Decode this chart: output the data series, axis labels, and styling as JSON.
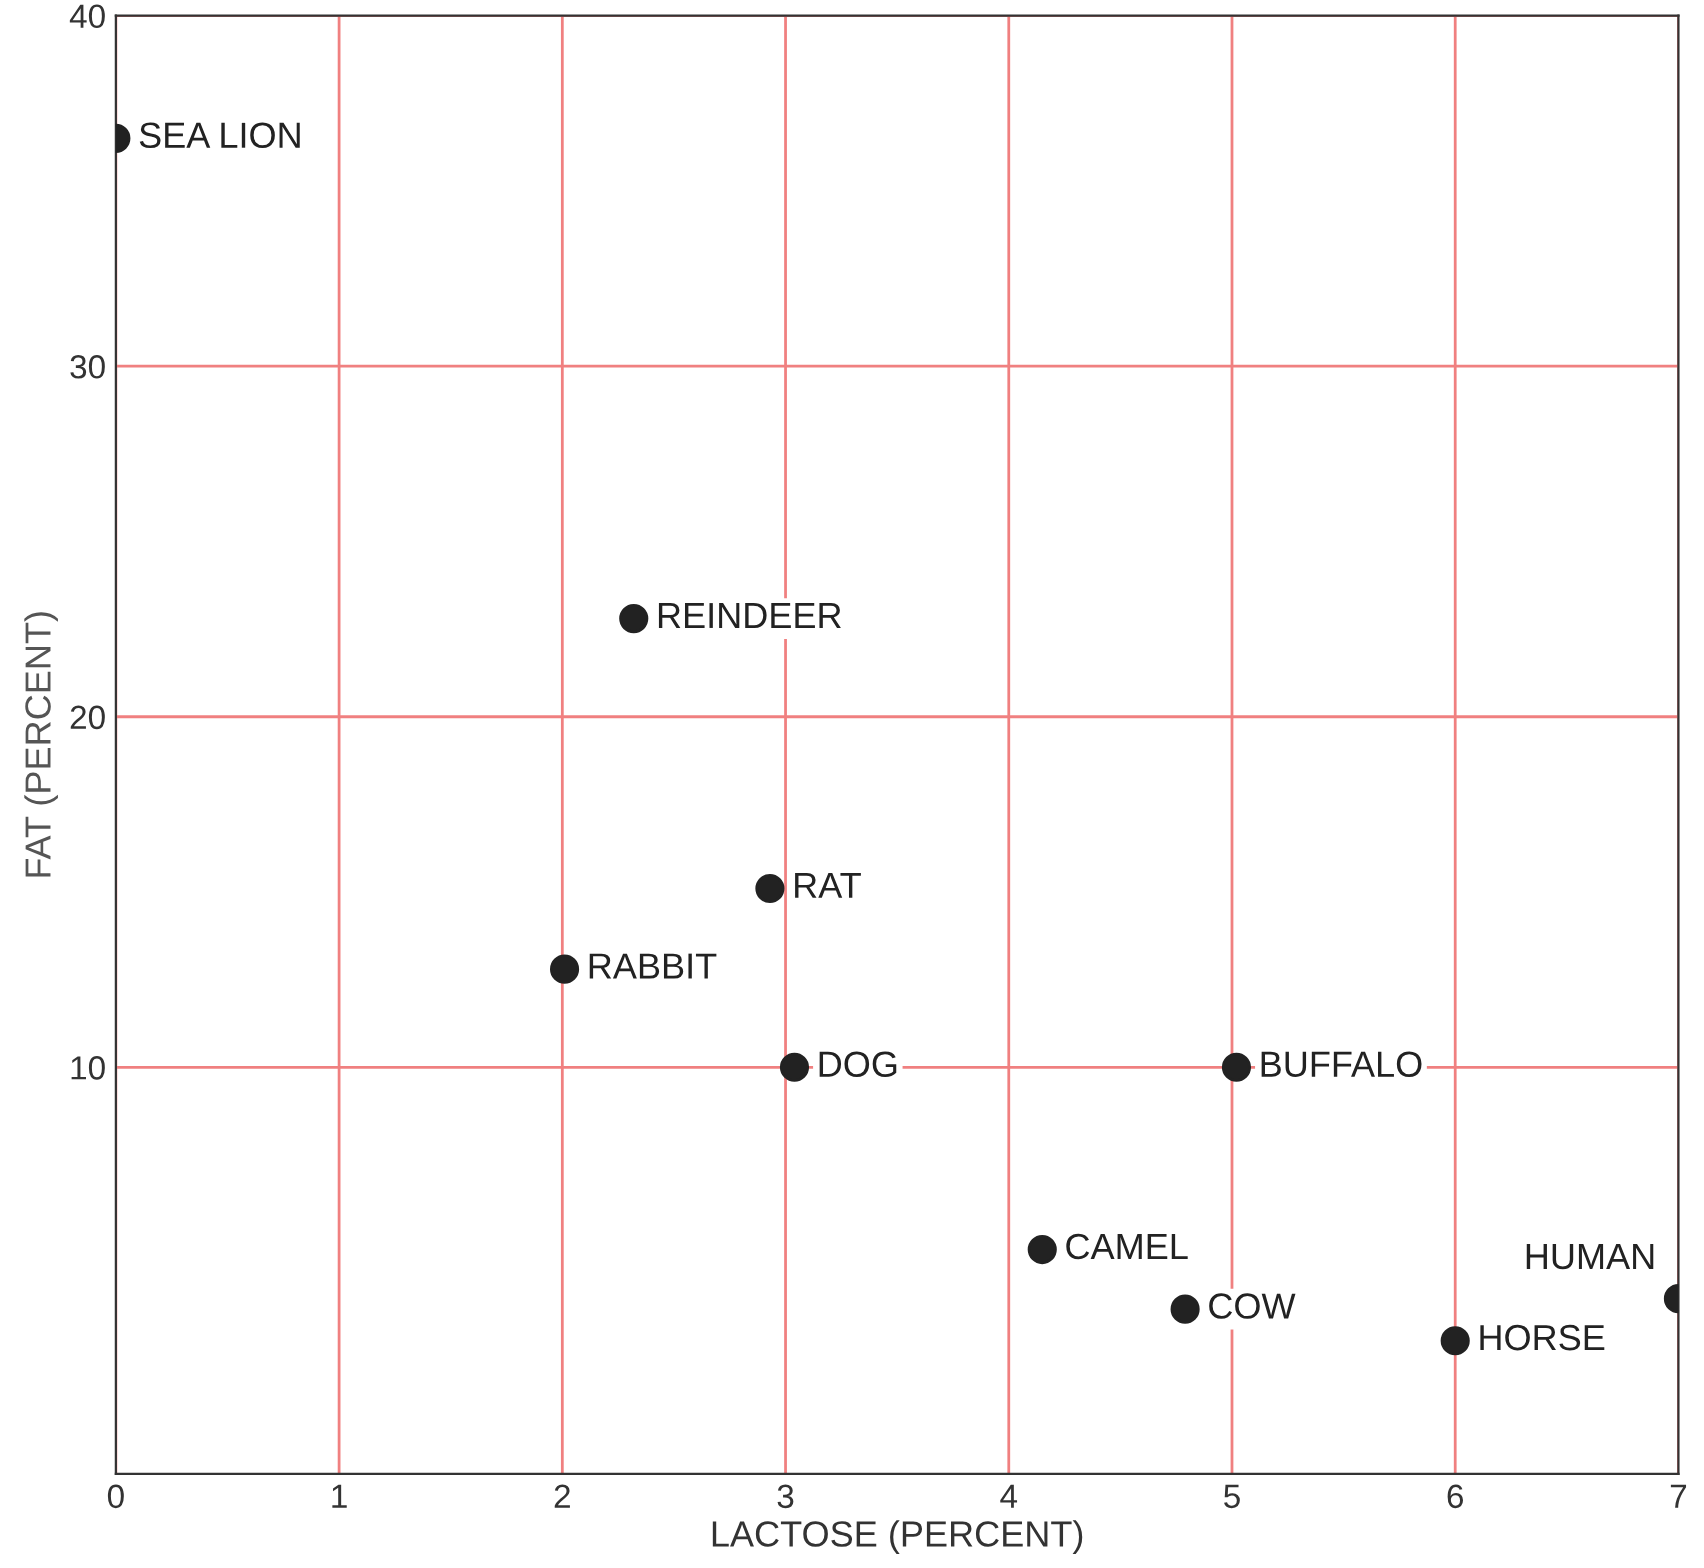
{
  "chart_data": {
    "type": "scatter",
    "xlabel": "LACTOSE (PERCENT)",
    "ylabel": "FAT (PERCENT)",
    "xlim": [
      0,
      7
    ],
    "ylim": [
      -1.6,
      40
    ],
    "xticks": [
      0,
      1,
      2,
      3,
      4,
      5,
      6,
      7
    ],
    "yticks": [
      10,
      20,
      30,
      40
    ],
    "grid": true,
    "marker": "circle",
    "series": [
      {
        "color": "#222222",
        "x": [
          0,
          2.32,
          2.93,
          2.01,
          3.04,
          5.02,
          4.15,
          4.79,
          6.0,
          7.0
        ],
        "values": [
          36.5,
          22.8,
          15.1,
          12.8,
          10.0,
          10.0,
          4.8,
          3.1,
          2.2,
          3.4
        ]
      }
    ],
    "annotations": [
      {
        "text": "SEA LION",
        "x": 0,
        "y": 36.5
      },
      {
        "text": "REINDEER",
        "x": 2.32,
        "y": 22.8
      },
      {
        "text": "RAT",
        "x": 2.93,
        "y": 15.1
      },
      {
        "text": "RABBIT",
        "x": 2.01,
        "y": 12.8
      },
      {
        "text": "DOG",
        "x": 3.04,
        "y": 10.0
      },
      {
        "text": "BUFFALO",
        "x": 5.02,
        "y": 10.0
      },
      {
        "text": "CAMEL",
        "x": 4.15,
        "y": 4.8
      },
      {
        "text": "COW",
        "x": 4.79,
        "y": 3.1
      },
      {
        "text": "HORSE",
        "x": 6.0,
        "y": 2.2
      },
      {
        "text": "HUMAN",
        "x": 7.0,
        "y": 3.4
      }
    ]
  }
}
